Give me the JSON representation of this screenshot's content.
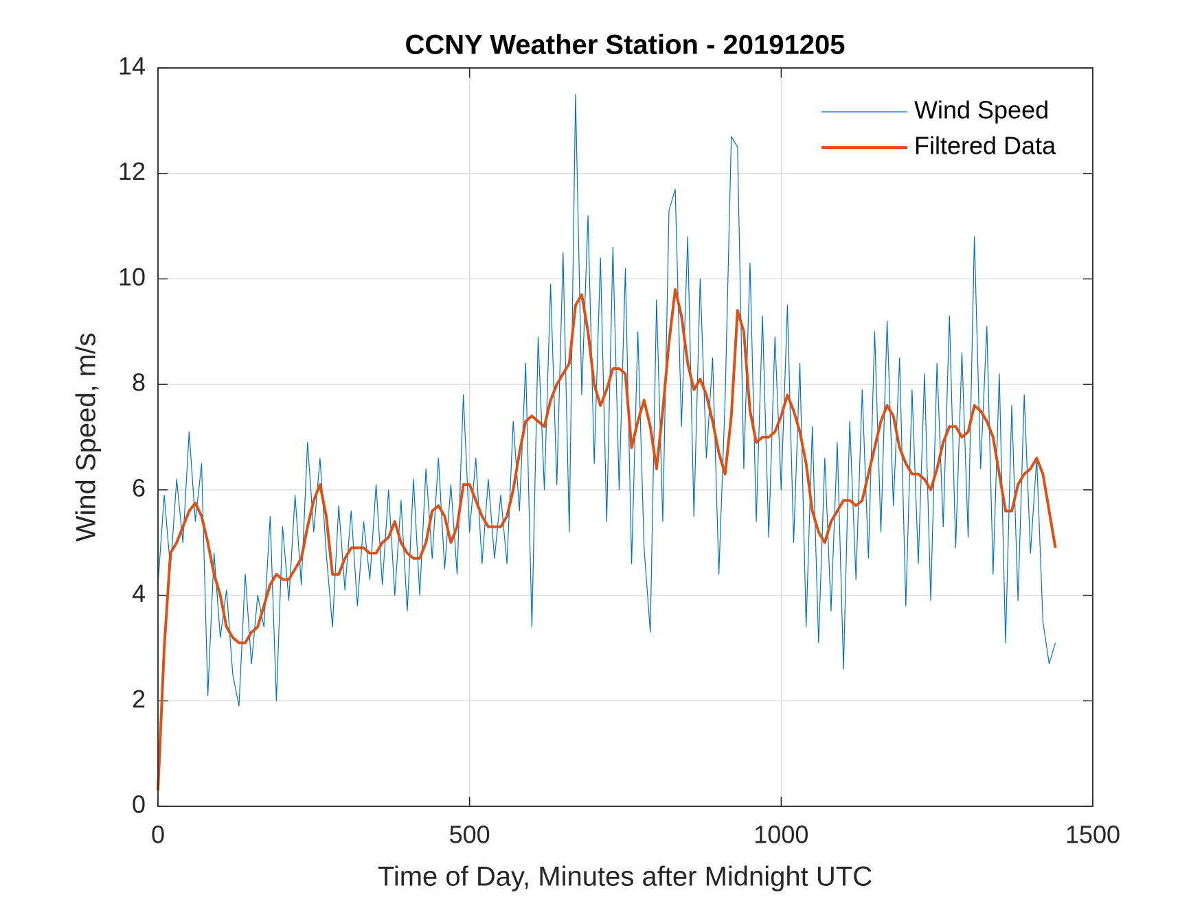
{
  "chart_data": {
    "type": "line",
    "title": "CCNY Weather Station - 20191205",
    "x_label": "Time of Day, Minutes after Midnight UTC",
    "y_label": "Wind Speed, m/s",
    "xlim": [
      0,
      1500
    ],
    "xticks": [
      0,
      500,
      1000,
      1500
    ],
    "ylim": [
      0,
      14
    ],
    "yticks": [
      0,
      2,
      4,
      6,
      8,
      10,
      12,
      14
    ],
    "grid": true,
    "legend": "top-right",
    "x": [
      0,
      10,
      20,
      30,
      40,
      50,
      60,
      70,
      80,
      90,
      100,
      110,
      120,
      130,
      140,
      150,
      160,
      170,
      180,
      190,
      200,
      210,
      220,
      230,
      240,
      250,
      260,
      270,
      280,
      290,
      300,
      310,
      320,
      330,
      340,
      350,
      360,
      370,
      380,
      390,
      400,
      410,
      420,
      430,
      440,
      450,
      460,
      470,
      480,
      490,
      500,
      510,
      520,
      530,
      540,
      550,
      560,
      570,
      580,
      590,
      600,
      610,
      620,
      630,
      640,
      650,
      660,
      670,
      680,
      690,
      700,
      710,
      720,
      730,
      740,
      750,
      760,
      770,
      780,
      790,
      800,
      810,
      820,
      830,
      840,
      850,
      860,
      870,
      880,
      890,
      900,
      910,
      920,
      930,
      940,
      950,
      960,
      970,
      980,
      990,
      1000,
      1010,
      1020,
      1030,
      1040,
      1050,
      1060,
      1070,
      1080,
      1090,
      1100,
      1110,
      1120,
      1130,
      1140,
      1150,
      1160,
      1170,
      1180,
      1190,
      1200,
      1210,
      1220,
      1230,
      1240,
      1250,
      1260,
      1270,
      1280,
      1290,
      1300,
      1310,
      1320,
      1330,
      1340,
      1350,
      1360,
      1370,
      1380,
      1390,
      1400,
      1410,
      1420,
      1430,
      1440
    ],
    "series": [
      {
        "name": "Wind Speed",
        "color": "#0072BD",
        "width": 1.2,
        "values": [
          4.2,
          5.9,
          4.5,
          6.2,
          5.0,
          7.1,
          5.4,
          6.5,
          2.1,
          4.8,
          3.2,
          4.1,
          2.5,
          1.9,
          4.4,
          2.7,
          4.0,
          3.4,
          5.5,
          2.0,
          5.3,
          3.9,
          5.9,
          4.2,
          6.9,
          5.2,
          6.6,
          4.8,
          3.4,
          5.7,
          4.1,
          5.6,
          3.8,
          5.4,
          4.3,
          6.1,
          4.2,
          6.0,
          4.0,
          5.8,
          3.7,
          6.2,
          4.0,
          6.4,
          4.7,
          6.6,
          4.5,
          6.1,
          4.4,
          7.8,
          5.2,
          6.6,
          4.6,
          6.2,
          4.7,
          5.9,
          4.6,
          7.3,
          5.6,
          8.4,
          3.4,
          8.9,
          6.0,
          9.9,
          6.1,
          10.5,
          5.2,
          13.5,
          7.8,
          11.2,
          6.5,
          10.4,
          5.4,
          10.6,
          6.0,
          10.2,
          4.6,
          9.0,
          4.9,
          3.3,
          9.6,
          5.4,
          11.3,
          11.7,
          7.2,
          10.8,
          5.5,
          10.0,
          6.6,
          8.5,
          4.4,
          7.7,
          12.7,
          12.5,
          6.4,
          10.3,
          5.4,
          9.3,
          5.1,
          8.9,
          6.0,
          9.5,
          5.0,
          8.4,
          3.4,
          7.2,
          3.1,
          6.6,
          3.7,
          6.9,
          2.6,
          7.3,
          4.3,
          7.9,
          4.7,
          9.0,
          5.2,
          9.2,
          5.7,
          8.5,
          3.8,
          7.9,
          4.6,
          8.2,
          3.9,
          8.4,
          5.3,
          9.3,
          4.9,
          8.6,
          5.1,
          10.8,
          6.4,
          9.1,
          4.4,
          8.2,
          3.1,
          7.6,
          3.9,
          7.8,
          4.8,
          6.6,
          3.5,
          2.7,
          3.1
        ]
      },
      {
        "name": "Filtered Data",
        "color": "#D95319",
        "width": 4,
        "values": [
          0.3,
          3.0,
          4.8,
          5.0,
          5.3,
          5.6,
          5.75,
          5.5,
          5.0,
          4.4,
          4.0,
          3.4,
          3.2,
          3.1,
          3.1,
          3.3,
          3.4,
          3.8,
          4.2,
          4.4,
          4.3,
          4.3,
          4.5,
          4.7,
          5.3,
          5.8,
          6.1,
          5.5,
          4.4,
          4.4,
          4.7,
          4.9,
          4.9,
          4.9,
          4.8,
          4.8,
          5.0,
          5.1,
          5.4,
          5.0,
          4.8,
          4.7,
          4.7,
          5.0,
          5.6,
          5.7,
          5.5,
          5.0,
          5.3,
          6.1,
          6.1,
          5.8,
          5.5,
          5.3,
          5.3,
          5.3,
          5.5,
          6.0,
          6.7,
          7.3,
          7.4,
          7.3,
          7.2,
          7.7,
          8.0,
          8.2,
          8.4,
          9.5,
          9.7,
          9.0,
          8.0,
          7.6,
          7.9,
          8.3,
          8.3,
          8.2,
          6.8,
          7.3,
          7.7,
          7.2,
          6.4,
          7.5,
          8.8,
          9.8,
          9.3,
          8.4,
          7.9,
          8.1,
          7.8,
          7.3,
          6.7,
          6.3,
          7.4,
          9.4,
          9.0,
          7.5,
          6.9,
          7.0,
          7.0,
          7.1,
          7.4,
          7.8,
          7.5,
          7.1,
          6.5,
          5.6,
          5.2,
          5.0,
          5.4,
          5.6,
          5.8,
          5.8,
          5.7,
          5.8,
          6.3,
          6.8,
          7.3,
          7.6,
          7.4,
          6.8,
          6.5,
          6.3,
          6.3,
          6.2,
          6.0,
          6.4,
          6.9,
          7.2,
          7.2,
          7.0,
          7.1,
          7.6,
          7.5,
          7.3,
          7.0,
          6.3,
          5.6,
          5.6,
          6.1,
          6.3,
          6.4,
          6.6,
          6.3,
          5.6,
          4.9
        ]
      }
    ]
  }
}
